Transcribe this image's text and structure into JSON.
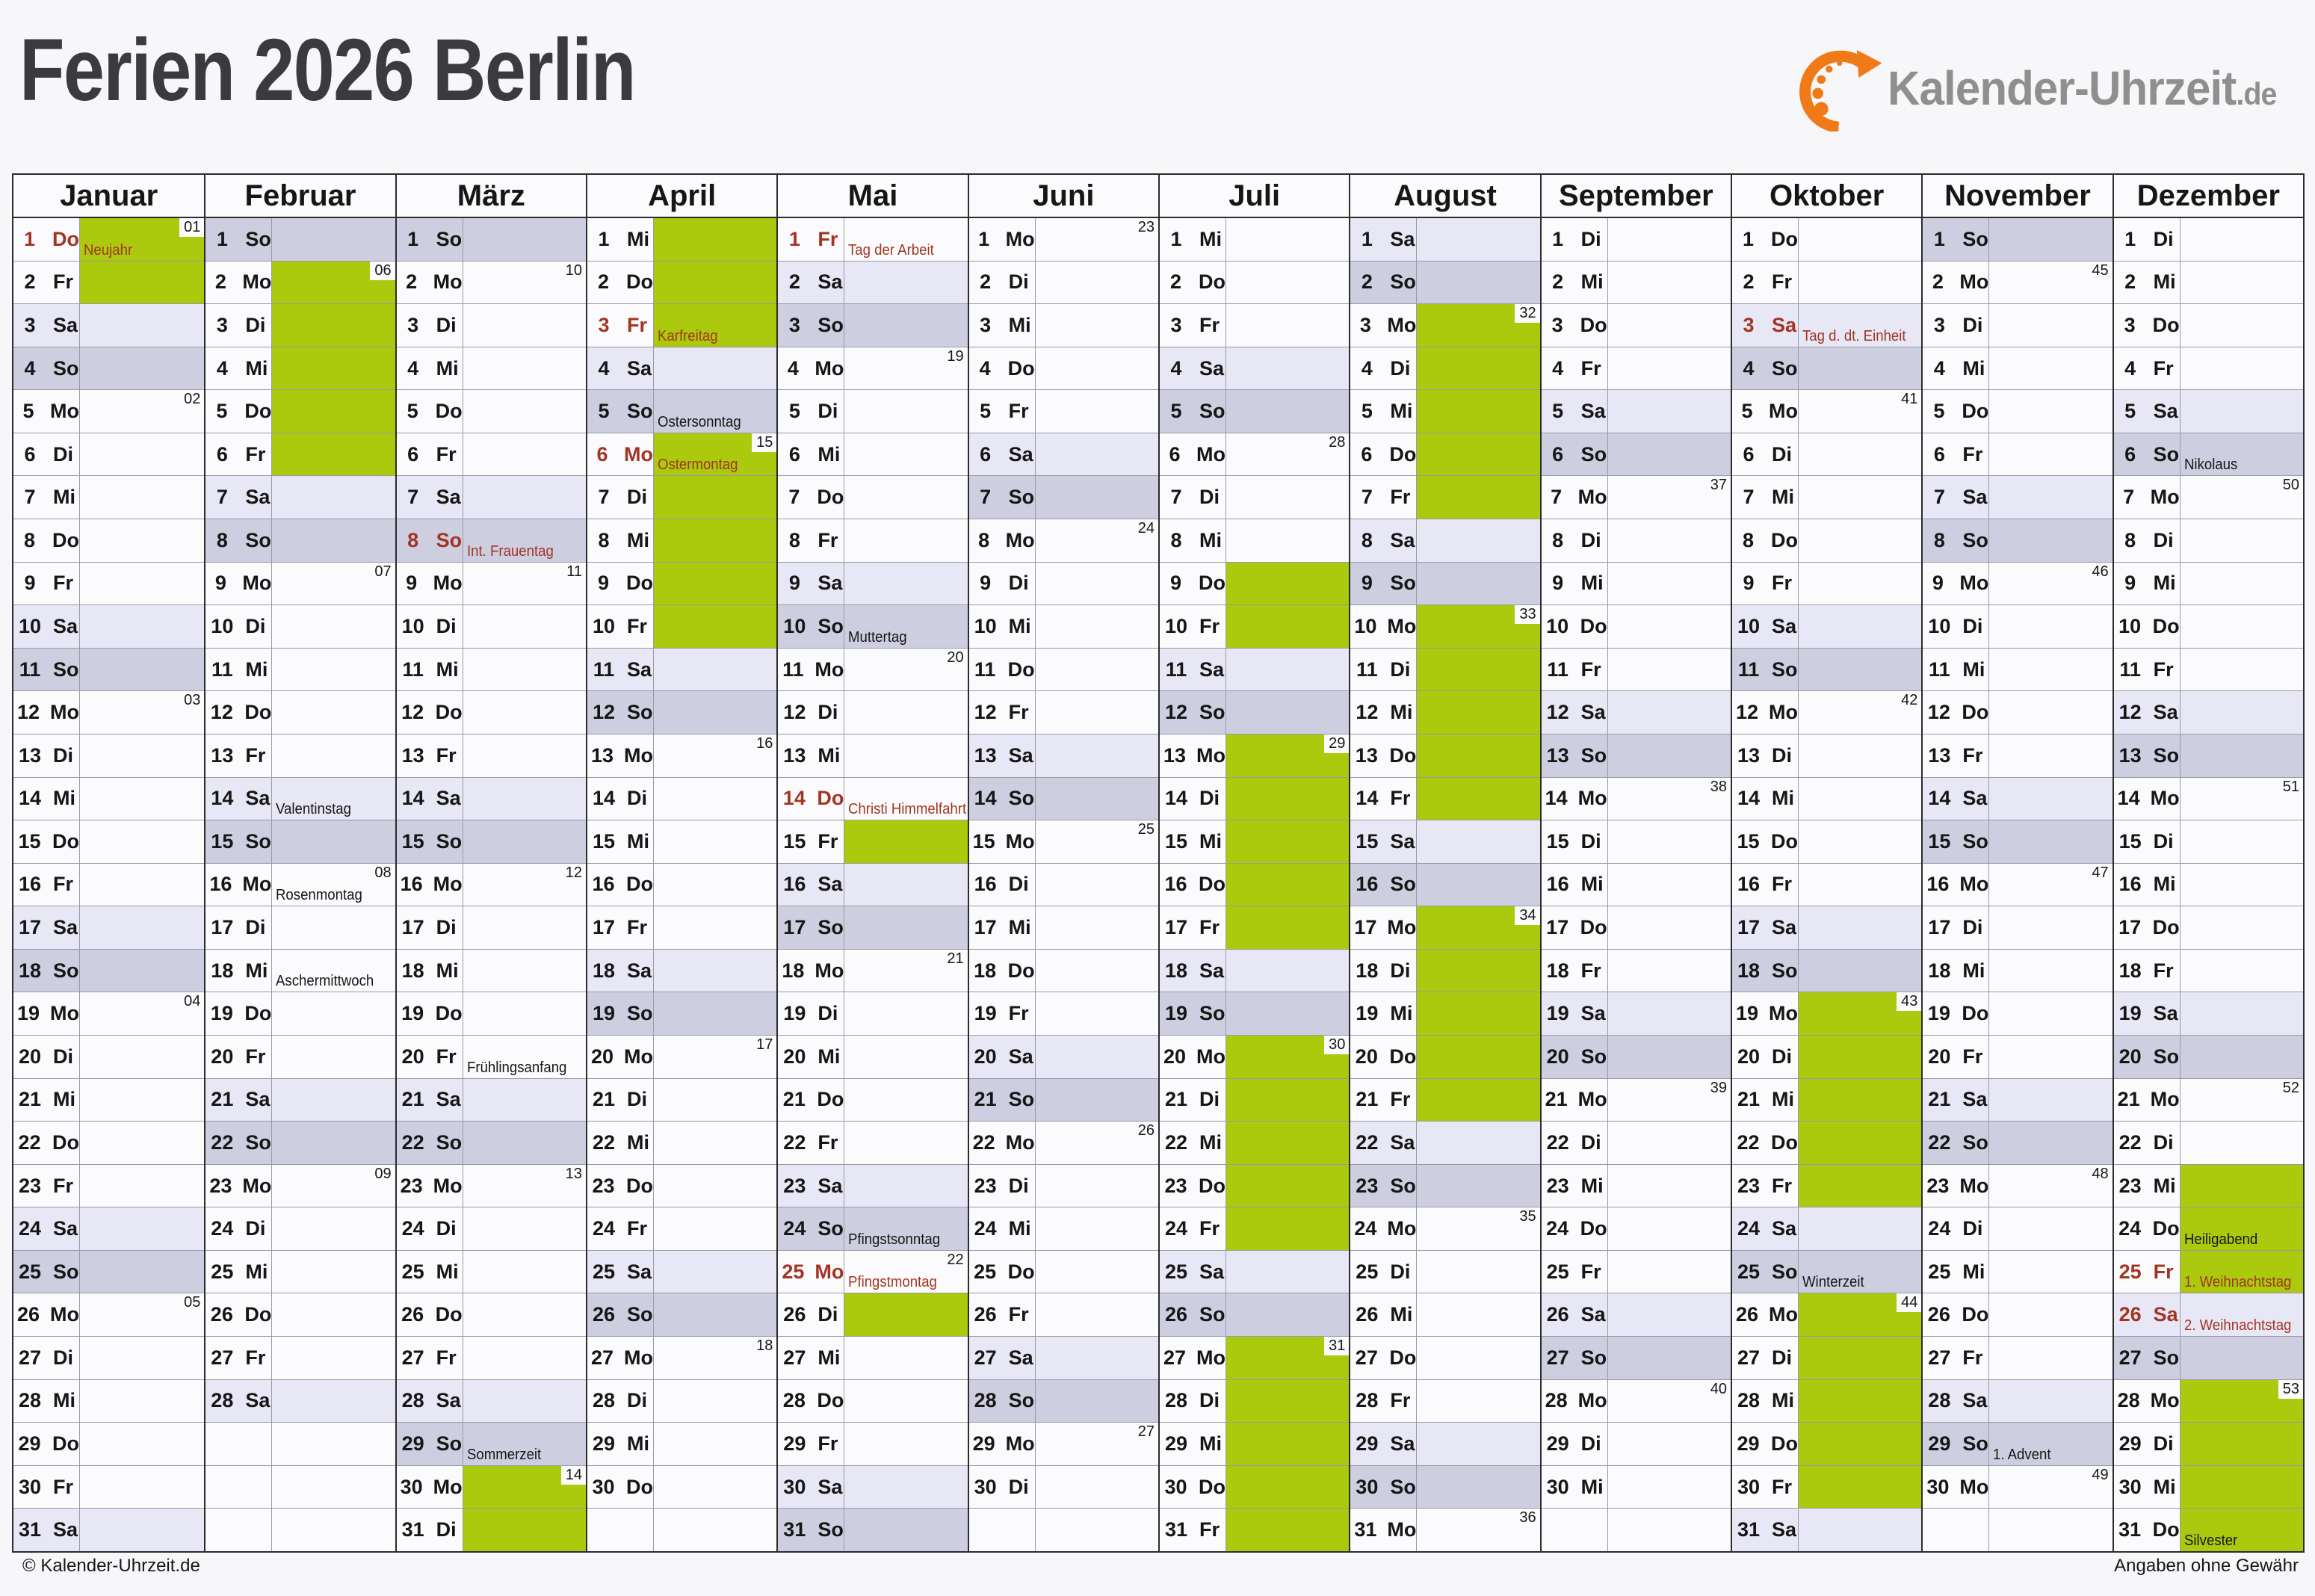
{
  "page": {
    "title": "Ferien 2026 Berlin",
    "footer_left": "© Kalender-Uhrzeit.de",
    "footer_right": "Angaben ohne Gewähr"
  },
  "logo": {
    "text": "Kalender-Uhrzeit",
    "tld": ".de"
  },
  "colors": {
    "vacation_green": "#ABC90D",
    "saturday_bg": "#E7E7F5",
    "sunday_bg": "#CECEE1",
    "holiday_red": "#A23522",
    "logo_orange": "#F07A18"
  },
  "weekday_abbr": [
    "Mo",
    "Di",
    "Mi",
    "Do",
    "Fr",
    "Sa",
    "So"
  ],
  "months": [
    {
      "name": "Januar",
      "days": 31,
      "first_weekday": 4,
      "weeks": {
        "1": "01",
        "5": "02",
        "12": "03",
        "19": "04",
        "26": "05"
      },
      "green": [
        1,
        2
      ],
      "red_days": [
        1
      ],
      "labels": {
        "1": {
          "text": "Neujahr",
          "red": true
        }
      }
    },
    {
      "name": "Februar",
      "days": 28,
      "first_weekday": 7,
      "weeks": {
        "2": "06",
        "9": "07",
        "16": "08",
        "23": "09"
      },
      "green": [
        2,
        3,
        4,
        5,
        6
      ],
      "red_days": [],
      "labels": {
        "14": {
          "text": "Valentinstag",
          "red": false
        },
        "16": {
          "text": "Rosenmontag",
          "red": false
        },
        "18": {
          "text": "Aschermittwoch",
          "red": false
        }
      }
    },
    {
      "name": "März",
      "days": 31,
      "first_weekday": 7,
      "weeks": {
        "2": "10",
        "9": "11",
        "16": "12",
        "23": "13",
        "30": "14"
      },
      "green": [
        30,
        31
      ],
      "red_days": [
        8
      ],
      "labels": {
        "8": {
          "text": "Int. Frauentag",
          "red": true
        },
        "20": {
          "text": "Frühlingsanfang",
          "red": false
        },
        "29": {
          "text": "Sommerzeit",
          "red": false
        }
      }
    },
    {
      "name": "April",
      "days": 30,
      "first_weekday": 3,
      "weeks": {
        "6": "15",
        "13": "16",
        "20": "17",
        "27": "18"
      },
      "green": [
        1,
        2,
        3,
        6,
        7,
        8,
        9,
        10
      ],
      "red_days": [
        3,
        6
      ],
      "labels": {
        "3": {
          "text": "Karfreitag",
          "red": true
        },
        "5": {
          "text": "Ostersonntag",
          "red": false
        },
        "6": {
          "text": "Ostermontag",
          "red": true
        }
      }
    },
    {
      "name": "Mai",
      "days": 31,
      "first_weekday": 5,
      "weeks": {
        "4": "19",
        "11": "20",
        "18": "21",
        "25": "22"
      },
      "green": [
        15,
        26
      ],
      "red_days": [
        1,
        14,
        25
      ],
      "labels": {
        "1": {
          "text": "Tag der Arbeit",
          "red": true
        },
        "10": {
          "text": "Muttertag",
          "red": false
        },
        "14": {
          "text": "Christi Himmelfahrt",
          "red": true
        },
        "24": {
          "text": "Pfingstsonntag",
          "red": false
        },
        "25": {
          "text": "Pfingstmontag",
          "red": true
        }
      }
    },
    {
      "name": "Juni",
      "days": 30,
      "first_weekday": 1,
      "weeks": {
        "1": "23",
        "8": "24",
        "15": "25",
        "22": "26",
        "29": "27"
      },
      "green": [],
      "red_days": [],
      "labels": {}
    },
    {
      "name": "Juli",
      "days": 31,
      "first_weekday": 3,
      "weeks": {
        "6": "28",
        "13": "29",
        "20": "30",
        "27": "31"
      },
      "green": [
        9,
        10,
        13,
        14,
        15,
        16,
        17,
        20,
        21,
        22,
        23,
        24,
        27,
        28,
        29,
        30,
        31
      ],
      "red_days": [],
      "labels": {}
    },
    {
      "name": "August",
      "days": 31,
      "first_weekday": 6,
      "weeks": {
        "3": "32",
        "10": "33",
        "17": "34",
        "24": "35",
        "31": "36"
      },
      "green": [
        3,
        4,
        5,
        6,
        7,
        10,
        11,
        12,
        13,
        14,
        17,
        18,
        19,
        20,
        21
      ],
      "red_days": [],
      "labels": {}
    },
    {
      "name": "September",
      "days": 30,
      "first_weekday": 2,
      "weeks": {
        "7": "37",
        "14": "38",
        "21": "39",
        "28": "40"
      },
      "green": [],
      "red_days": [],
      "labels": {}
    },
    {
      "name": "Oktober",
      "days": 31,
      "first_weekday": 4,
      "weeks": {
        "5": "41",
        "12": "42",
        "19": "43",
        "26": "44"
      },
      "green": [
        19,
        20,
        21,
        22,
        23,
        26,
        27,
        28,
        29,
        30
      ],
      "red_days": [
        3
      ],
      "labels": {
        "3": {
          "text": "Tag d. dt. Einheit",
          "red": true
        },
        "25": {
          "text": "Winterzeit",
          "red": false
        }
      }
    },
    {
      "name": "November",
      "days": 30,
      "first_weekday": 7,
      "weeks": {
        "2": "45",
        "9": "46",
        "16": "47",
        "23": "48",
        "30": "49"
      },
      "green": [],
      "red_days": [],
      "labels": {
        "29": {
          "text": "1. Advent",
          "red": false
        }
      }
    },
    {
      "name": "Dezember",
      "days": 31,
      "first_weekday": 2,
      "weeks": {
        "7": "50",
        "14": "51",
        "21": "52",
        "28": "53"
      },
      "green": [
        23,
        24,
        25,
        28,
        29,
        30,
        31
      ],
      "red_days": [
        25,
        26
      ],
      "labels": {
        "6": {
          "text": "Nikolaus",
          "red": false
        },
        "24": {
          "text": "Heiligabend",
          "red": false
        },
        "25": {
          "text": "1. Weihnachtstag",
          "red": true
        },
        "26": {
          "text": "2. Weihnachtstag",
          "red": true
        },
        "31": {
          "text": "Silvester",
          "red": false
        }
      }
    }
  ]
}
